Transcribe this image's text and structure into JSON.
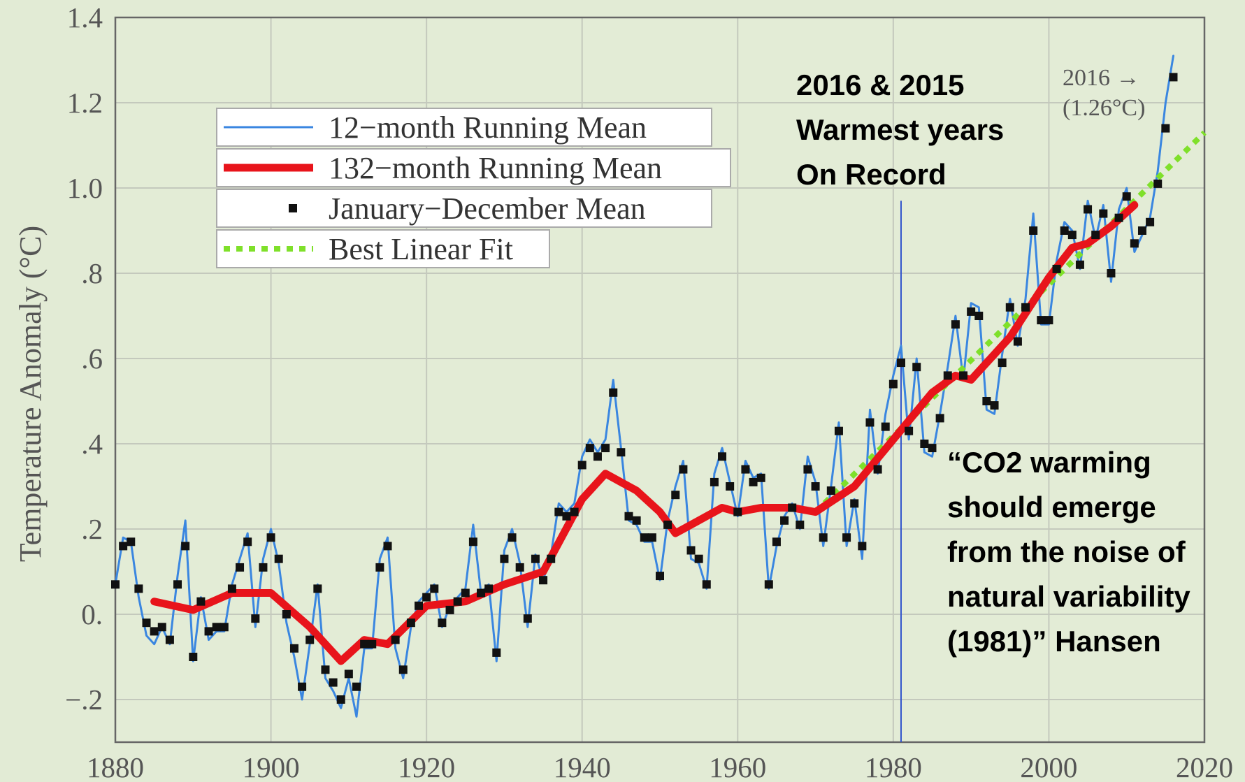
{
  "chart_data": {
    "type": "line",
    "ylabel": "Temperature Anomaly (°C)",
    "xlim": [
      1880,
      2020
    ],
    "xticks": [
      1880,
      1900,
      1920,
      1940,
      1960,
      1980,
      2000,
      2020
    ],
    "ylim": [
      -0.3,
      1.4
    ],
    "yticks": [
      {
        "value": -0.2,
        "label": "−.2"
      },
      {
        "value": 0,
        "label": "0."
      },
      {
        "value": 0.2,
        "label": ".2"
      },
      {
        "value": 0.4,
        "label": ".4"
      },
      {
        "value": 0.6,
        "label": ".6"
      },
      {
        "value": 0.8,
        "label": ".8"
      },
      {
        "value": 1,
        "label": "1.0"
      },
      1.2,
      1.4
    ],
    "grid": true,
    "series": [
      {
        "name": "12−month Running Mean",
        "color": "#3a86e0",
        "style": "line",
        "x": [
          1880,
          1881,
          1882,
          1883,
          1884,
          1885,
          1886,
          1887,
          1888,
          1889,
          1890,
          1891,
          1892,
          1893,
          1894,
          1895,
          1896,
          1897,
          1898,
          1899,
          1900,
          1901,
          1902,
          1903,
          1904,
          1905,
          1906,
          1907,
          1908,
          1909,
          1910,
          1911,
          1912,
          1913,
          1914,
          1915,
          1916,
          1917,
          1918,
          1919,
          1920,
          1921,
          1922,
          1923,
          1924,
          1925,
          1926,
          1927,
          1928,
          1929,
          1930,
          1931,
          1932,
          1933,
          1934,
          1935,
          1936,
          1937,
          1938,
          1939,
          1940,
          1941,
          1942,
          1943,
          1944,
          1945,
          1946,
          1947,
          1948,
          1949,
          1950,
          1951,
          1952,
          1953,
          1954,
          1955,
          1956,
          1957,
          1958,
          1959,
          1960,
          1961,
          1962,
          1963,
          1964,
          1965,
          1966,
          1967,
          1968,
          1969,
          1970,
          1971,
          1972,
          1973,
          1974,
          1975,
          1976,
          1977,
          1978,
          1979,
          1980,
          1981,
          1982,
          1983,
          1984,
          1985,
          1986,
          1987,
          1988,
          1989,
          1990,
          1991,
          1992,
          1993,
          1994,
          1995,
          1996,
          1997,
          1998,
          1999,
          2000,
          2001,
          2002,
          2003,
          2004,
          2005,
          2006,
          2007,
          2008,
          2009,
          2010,
          2011,
          2012,
          2013,
          2014,
          2015,
          2016
        ],
        "values": [
          0.07,
          0.18,
          0.17,
          0.04,
          -0.05,
          -0.07,
          -0.03,
          -0.07,
          0.09,
          0.22,
          -0.11,
          0.04,
          -0.06,
          -0.04,
          -0.04,
          0.07,
          0.13,
          0.19,
          -0.03,
          0.13,
          0.2,
          0.12,
          -0.02,
          -0.1,
          -0.2,
          -0.07,
          0.07,
          -0.15,
          -0.18,
          -0.22,
          -0.15,
          -0.24,
          -0.08,
          -0.08,
          0.13,
          0.18,
          -0.08,
          -0.15,
          -0.03,
          0.03,
          0.05,
          0.07,
          -0.03,
          0.02,
          0.04,
          0.06,
          0.21,
          0.05,
          0.07,
          -0.11,
          0.15,
          0.2,
          0.12,
          -0.03,
          0.14,
          0.08,
          0.14,
          0.26,
          0.24,
          0.26,
          0.37,
          0.41,
          0.38,
          0.41,
          0.55,
          0.39,
          0.22,
          0.21,
          0.17,
          0.17,
          0.08,
          0.22,
          0.3,
          0.36,
          0.13,
          0.12,
          0.06,
          0.33,
          0.39,
          0.31,
          0.23,
          0.36,
          0.32,
          0.33,
          0.06,
          0.16,
          0.23,
          0.26,
          0.2,
          0.37,
          0.31,
          0.16,
          0.3,
          0.45,
          0.16,
          0.27,
          0.13,
          0.48,
          0.33,
          0.47,
          0.56,
          0.63,
          0.41,
          0.6,
          0.38,
          0.37,
          0.47,
          0.58,
          0.7,
          0.55,
          0.73,
          0.72,
          0.48,
          0.47,
          0.61,
          0.74,
          0.63,
          0.74,
          0.94,
          0.68,
          0.68,
          0.83,
          0.92,
          0.9,
          0.81,
          0.97,
          0.88,
          0.96,
          0.78,
          0.95,
          1,
          0.85,
          0.89,
          0.93,
          1.04,
          1.2,
          1.31
        ]
      },
      {
        "name": "132−month Running Mean",
        "color": "#e8141b",
        "style": "thick",
        "x": [
          1885,
          1890,
          1895,
          1900,
          1905,
          1909,
          1912,
          1915,
          1920,
          1925,
          1930,
          1935,
          1940,
          1943,
          1947,
          1950,
          1952,
          1955,
          1958,
          1960,
          1963,
          1967,
          1970,
          1975,
          1980,
          1985,
          1988,
          1990,
          1995,
          2000,
          2003,
          2005,
          2008,
          2011
        ],
        "values": [
          0.03,
          0.01,
          0.05,
          0.05,
          -0.03,
          -0.11,
          -0.06,
          -0.07,
          0.02,
          0.03,
          0.07,
          0.1,
          0.27,
          0.33,
          0.29,
          0.24,
          0.19,
          0.22,
          0.25,
          0.24,
          0.25,
          0.25,
          0.24,
          0.3,
          0.41,
          0.52,
          0.56,
          0.55,
          0.65,
          0.79,
          0.86,
          0.87,
          0.91,
          0.96
        ]
      },
      {
        "name": "January−December Mean",
        "color": "#111111",
        "style": "markers",
        "x": [
          1880,
          1881,
          1882,
          1883,
          1884,
          1885,
          1886,
          1887,
          1888,
          1889,
          1890,
          1891,
          1892,
          1893,
          1894,
          1895,
          1896,
          1897,
          1898,
          1899,
          1900,
          1901,
          1902,
          1903,
          1904,
          1905,
          1906,
          1907,
          1908,
          1909,
          1910,
          1911,
          1912,
          1913,
          1914,
          1915,
          1916,
          1917,
          1918,
          1919,
          1920,
          1921,
          1922,
          1923,
          1924,
          1925,
          1926,
          1927,
          1928,
          1929,
          1930,
          1931,
          1932,
          1933,
          1934,
          1935,
          1936,
          1937,
          1938,
          1939,
          1940,
          1941,
          1942,
          1943,
          1944,
          1945,
          1946,
          1947,
          1948,
          1949,
          1950,
          1951,
          1952,
          1953,
          1954,
          1955,
          1956,
          1957,
          1958,
          1959,
          1960,
          1961,
          1962,
          1963,
          1964,
          1965,
          1966,
          1967,
          1968,
          1969,
          1970,
          1971,
          1972,
          1973,
          1974,
          1975,
          1976,
          1977,
          1978,
          1979,
          1980,
          1981,
          1982,
          1983,
          1984,
          1985,
          1986,
          1987,
          1988,
          1989,
          1990,
          1991,
          1992,
          1993,
          1994,
          1995,
          1996,
          1997,
          1998,
          1999,
          2000,
          2001,
          2002,
          2003,
          2004,
          2005,
          2006,
          2007,
          2008,
          2009,
          2010,
          2011,
          2012,
          2013,
          2014,
          2015,
          2016
        ],
        "values": [
          0.07,
          0.16,
          0.17,
          0.06,
          -0.02,
          -0.04,
          -0.03,
          -0.06,
          0.07,
          0.16,
          -0.1,
          0.03,
          -0.04,
          -0.03,
          -0.03,
          0.06,
          0.11,
          0.17,
          -0.01,
          0.11,
          0.18,
          0.13,
          0,
          -0.08,
          -0.17,
          -0.06,
          0.06,
          -0.13,
          -0.16,
          -0.2,
          -0.14,
          -0.17,
          -0.07,
          -0.07,
          0.11,
          0.16,
          -0.06,
          -0.13,
          -0.02,
          0.02,
          0.04,
          0.06,
          -0.02,
          0.01,
          0.03,
          0.05,
          0.17,
          0.05,
          0.06,
          -0.09,
          0.13,
          0.18,
          0.11,
          -0.01,
          0.13,
          0.08,
          0.13,
          0.24,
          0.23,
          0.24,
          0.35,
          0.39,
          0.37,
          0.39,
          0.52,
          0.38,
          0.23,
          0.22,
          0.18,
          0.18,
          0.09,
          0.21,
          0.28,
          0.34,
          0.15,
          0.13,
          0.07,
          0.31,
          0.37,
          0.3,
          0.24,
          0.34,
          0.31,
          0.32,
          0.07,
          0.17,
          0.22,
          0.25,
          0.21,
          0.34,
          0.3,
          0.18,
          0.29,
          0.43,
          0.18,
          0.26,
          0.16,
          0.45,
          0.34,
          0.44,
          0.54,
          0.59,
          0.43,
          0.58,
          0.4,
          0.39,
          0.46,
          0.56,
          0.68,
          0.56,
          0.71,
          0.7,
          0.5,
          0.49,
          0.59,
          0.72,
          0.64,
          0.72,
          0.9,
          0.69,
          0.69,
          0.81,
          0.9,
          0.89,
          0.82,
          0.95,
          0.89,
          0.94,
          0.8,
          0.93,
          0.98,
          0.87,
          0.9,
          0.92,
          1.01,
          1.14,
          1.26
        ]
      },
      {
        "name": "Best Linear Fit",
        "color": "#7fe02a",
        "style": "dotted",
        "x": [
          1970,
          2020
        ],
        "values": [
          0.24,
          1.13
        ]
      }
    ],
    "reference_line": {
      "x": 1981,
      "top": 0.97
    },
    "annotations": {
      "record": [
        "2016 & 2015",
        "Warmest years",
        "On Record"
      ],
      "peak": [
        "2016 →",
        "(1.26°C)"
      ],
      "quote": [
        "“CO2 warming",
        "should emerge",
        "from the noise of",
        "natural variability",
        "(1981)” Hansen"
      ]
    }
  }
}
